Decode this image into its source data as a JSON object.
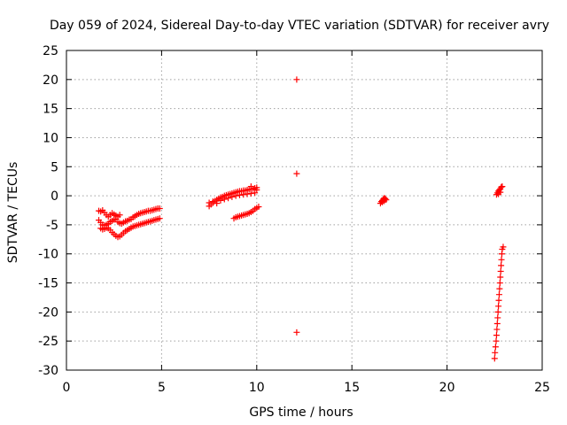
{
  "chart_data": {
    "type": "scatter",
    "title": "Day 059 of 2024, Sidereal Day-to-day VTEC variation (SDTVAR) for receiver avry",
    "xlabel": "GPS time / hours",
    "ylabel": "SDTVAR / TECUs",
    "xlim": [
      0,
      25
    ],
    "ylim": [
      -30,
      25
    ],
    "xticks": [
      0,
      5,
      10,
      15,
      20,
      25
    ],
    "yticks": [
      -30,
      -25,
      -20,
      -15,
      -10,
      -5,
      0,
      5,
      10,
      15,
      20,
      25
    ],
    "grid": true,
    "marker": "+",
    "color": "#ff0000",
    "series": [
      {
        "name": "SDTVAR",
        "points": [
          [
            1.7,
            -2.6
          ],
          [
            1.8,
            -2.7
          ],
          [
            1.9,
            -2.5
          ],
          [
            2.0,
            -2.9
          ],
          [
            2.1,
            -3.3
          ],
          [
            2.2,
            -3.6
          ],
          [
            2.3,
            -3.3
          ],
          [
            2.4,
            -3.0
          ],
          [
            2.5,
            -3.2
          ],
          [
            2.6,
            -3.4
          ],
          [
            2.7,
            -3.6
          ],
          [
            2.8,
            -3.3
          ],
          [
            1.7,
            -4.2
          ],
          [
            1.8,
            -4.6
          ],
          [
            1.9,
            -5.0
          ],
          [
            2.0,
            -5.1
          ],
          [
            2.1,
            -5.0
          ],
          [
            2.2,
            -4.8
          ],
          [
            2.3,
            -4.5
          ],
          [
            2.4,
            -4.3
          ],
          [
            2.5,
            -4.1
          ],
          [
            2.6,
            -4.0
          ],
          [
            2.7,
            -4.5
          ],
          [
            2.8,
            -4.7
          ],
          [
            2.9,
            -4.8
          ],
          [
            3.0,
            -4.6
          ],
          [
            3.1,
            -4.4
          ],
          [
            3.2,
            -4.3
          ],
          [
            3.3,
            -4.1
          ],
          [
            3.4,
            -4.0
          ],
          [
            3.5,
            -3.7
          ],
          [
            3.6,
            -3.5
          ],
          [
            3.7,
            -3.3
          ],
          [
            3.8,
            -3.1
          ],
          [
            3.9,
            -3.0
          ],
          [
            4.0,
            -2.9
          ],
          [
            4.1,
            -2.8
          ],
          [
            4.2,
            -2.7
          ],
          [
            4.3,
            -2.6
          ],
          [
            4.4,
            -2.6
          ],
          [
            4.5,
            -2.5
          ],
          [
            4.6,
            -2.4
          ],
          [
            4.7,
            -2.3
          ],
          [
            4.8,
            -2.2
          ],
          [
            4.9,
            -2.2
          ],
          [
            1.8,
            -5.6
          ],
          [
            1.9,
            -5.8
          ],
          [
            2.0,
            -5.7
          ],
          [
            2.1,
            -5.5
          ],
          [
            2.2,
            -5.6
          ],
          [
            2.3,
            -5.9
          ],
          [
            2.4,
            -6.3
          ],
          [
            2.5,
            -6.6
          ],
          [
            2.6,
            -6.9
          ],
          [
            2.7,
            -7.1
          ],
          [
            2.8,
            -7.0
          ],
          [
            2.9,
            -6.7
          ],
          [
            3.0,
            -6.4
          ],
          [
            3.1,
            -6.1
          ],
          [
            3.2,
            -5.9
          ],
          [
            3.3,
            -5.7
          ],
          [
            3.4,
            -5.5
          ],
          [
            3.5,
            -5.3
          ],
          [
            3.6,
            -5.2
          ],
          [
            3.7,
            -5.1
          ],
          [
            3.8,
            -5.0
          ],
          [
            3.9,
            -4.9
          ],
          [
            4.0,
            -4.8
          ],
          [
            4.1,
            -4.7
          ],
          [
            4.2,
            -4.6
          ],
          [
            4.3,
            -4.5
          ],
          [
            4.4,
            -4.4
          ],
          [
            4.5,
            -4.3
          ],
          [
            4.6,
            -4.2
          ],
          [
            4.7,
            -4.1
          ],
          [
            4.8,
            -4.0
          ],
          [
            4.9,
            -3.9
          ],
          [
            7.5,
            -1.8
          ],
          [
            7.6,
            -1.5
          ],
          [
            7.7,
            -1.2
          ],
          [
            7.8,
            -0.9
          ],
          [
            7.9,
            -0.7
          ],
          [
            8.0,
            -0.5
          ],
          [
            8.1,
            -0.3
          ],
          [
            8.2,
            -0.2
          ],
          [
            8.3,
            0.0
          ],
          [
            8.4,
            0.1
          ],
          [
            8.5,
            0.2
          ],
          [
            8.6,
            0.3
          ],
          [
            8.7,
            0.4
          ],
          [
            8.8,
            0.5
          ],
          [
            8.9,
            0.6
          ],
          [
            9.0,
            0.7
          ],
          [
            9.1,
            0.8
          ],
          [
            9.2,
            0.8
          ],
          [
            9.3,
            0.9
          ],
          [
            9.4,
            0.9
          ],
          [
            9.5,
            1.0
          ],
          [
            9.6,
            1.1
          ],
          [
            9.7,
            1.1
          ],
          [
            9.8,
            1.2
          ],
          [
            9.9,
            1.3
          ],
          [
            10.0,
            1.4
          ],
          [
            7.5,
            -1.2
          ],
          [
            7.7,
            -1.0
          ],
          [
            7.9,
            -1.3
          ],
          [
            8.1,
            -0.8
          ],
          [
            8.3,
            -0.6
          ],
          [
            8.5,
            -0.4
          ],
          [
            8.7,
            -0.2
          ],
          [
            8.9,
            0.0
          ],
          [
            9.1,
            0.1
          ],
          [
            9.3,
            0.2
          ],
          [
            9.5,
            0.3
          ],
          [
            9.7,
            0.4
          ],
          [
            9.9,
            0.5
          ],
          [
            9.7,
            1.6
          ],
          [
            10.0,
            1.0
          ],
          [
            8.8,
            -3.9
          ],
          [
            8.9,
            -3.7
          ],
          [
            9.0,
            -3.6
          ],
          [
            9.1,
            -3.5
          ],
          [
            9.2,
            -3.4
          ],
          [
            9.3,
            -3.3
          ],
          [
            9.4,
            -3.2
          ],
          [
            9.5,
            -3.1
          ],
          [
            9.6,
            -3.0
          ],
          [
            9.7,
            -2.8
          ],
          [
            9.8,
            -2.6
          ],
          [
            9.9,
            -2.3
          ],
          [
            10.0,
            -2.1
          ],
          [
            10.1,
            -1.9
          ],
          [
            12.1,
            20.0
          ],
          [
            12.1,
            3.8
          ],
          [
            12.1,
            -23.5
          ],
          [
            16.5,
            -1.3
          ],
          [
            16.55,
            -1.0
          ],
          [
            16.6,
            -0.8
          ],
          [
            16.65,
            -0.6
          ],
          [
            16.7,
            -0.4
          ],
          [
            16.75,
            -0.5
          ],
          [
            16.8,
            -0.7
          ],
          [
            16.6,
            -1.1
          ],
          [
            16.7,
            -0.9
          ],
          [
            22.6,
            0.2
          ],
          [
            22.65,
            0.5
          ],
          [
            22.7,
            0.8
          ],
          [
            22.75,
            1.0
          ],
          [
            22.8,
            1.2
          ],
          [
            22.85,
            1.5
          ],
          [
            22.9,
            1.6
          ],
          [
            22.7,
            0.3
          ],
          [
            22.8,
            0.6
          ],
          [
            22.5,
            -28.0
          ],
          [
            22.52,
            -27.0
          ],
          [
            22.55,
            -26.0
          ],
          [
            22.58,
            -25.0
          ],
          [
            22.6,
            -24.0
          ],
          [
            22.62,
            -23.0
          ],
          [
            22.64,
            -22.0
          ],
          [
            22.66,
            -21.0
          ],
          [
            22.68,
            -20.0
          ],
          [
            22.7,
            -19.0
          ],
          [
            22.72,
            -18.0
          ],
          [
            22.74,
            -17.0
          ],
          [
            22.76,
            -16.0
          ],
          [
            22.78,
            -15.0
          ],
          [
            22.8,
            -14.0
          ],
          [
            22.82,
            -13.0
          ],
          [
            22.84,
            -12.0
          ],
          [
            22.86,
            -11.0
          ],
          [
            22.88,
            -10.0
          ],
          [
            22.9,
            -9.2
          ],
          [
            22.95,
            -8.8
          ]
        ]
      }
    ]
  }
}
